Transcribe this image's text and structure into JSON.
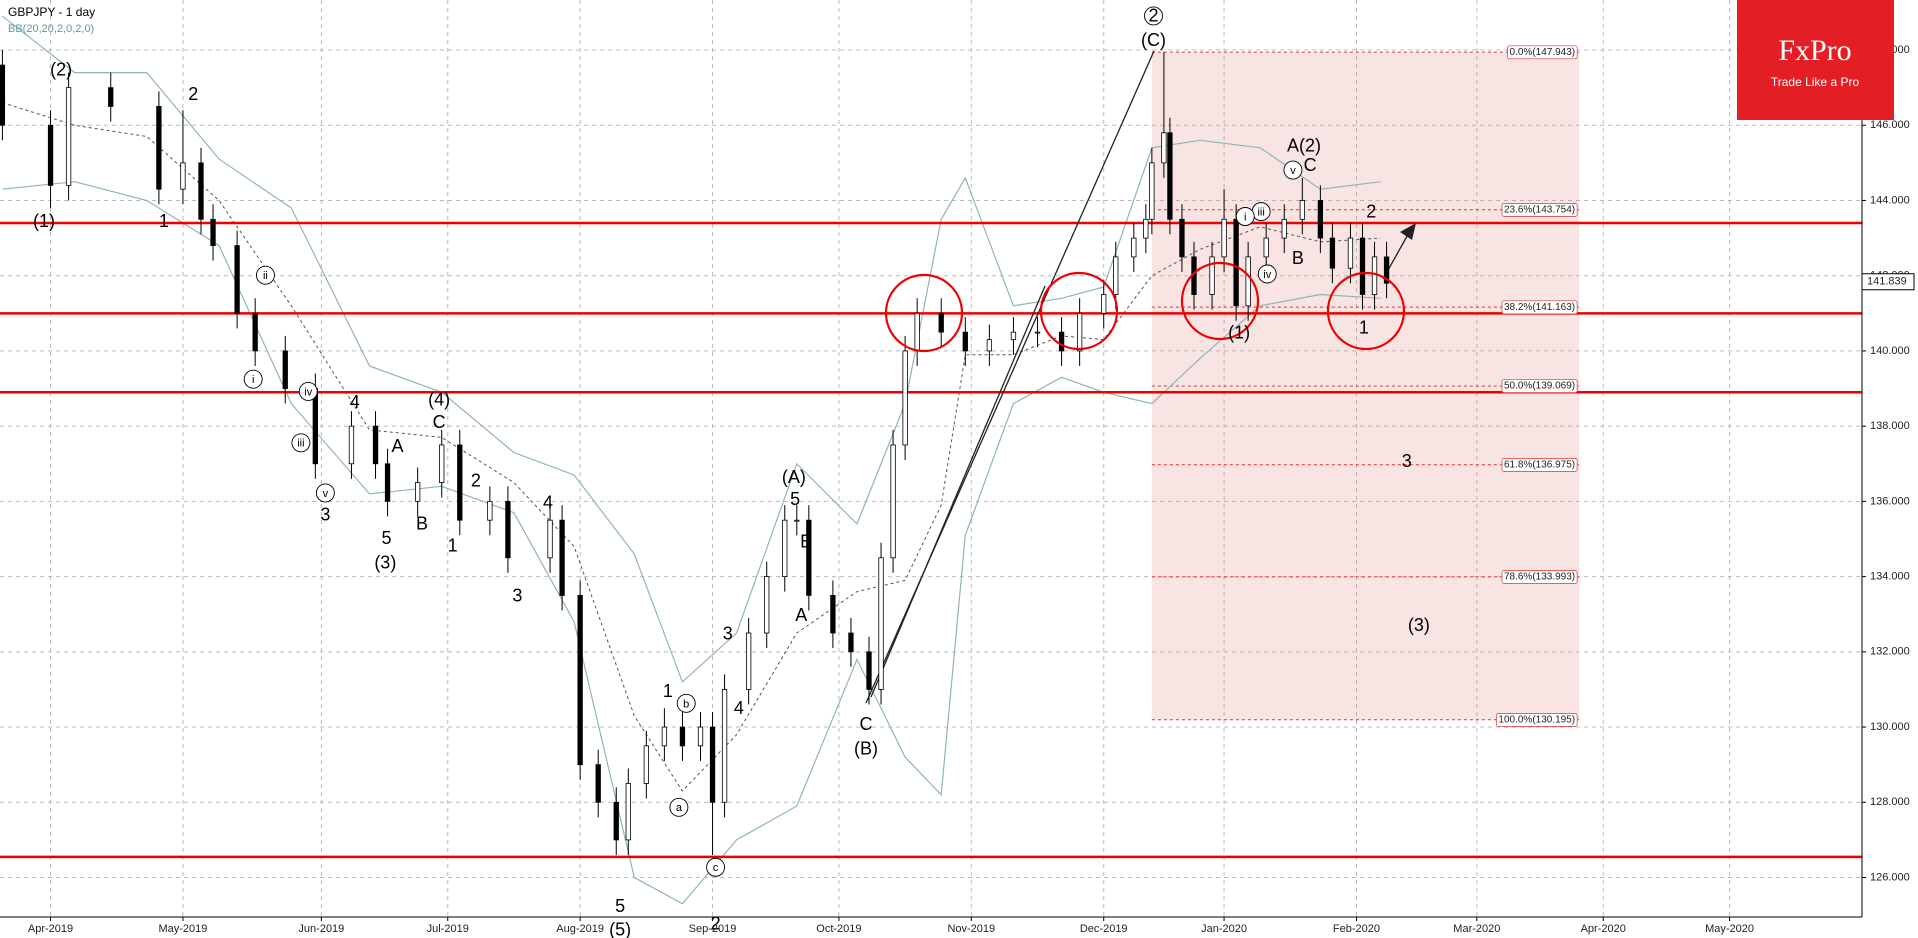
{
  "chart_data": {
    "type": "candlestick",
    "title": "GBPJPY - 1 day",
    "subtitle": "BB(20,20,2,0,2,0)",
    "logo": {
      "name": "FxPro",
      "tagline": "Trade Like a Pro"
    },
    "xlim": [
      0,
      309
    ],
    "xticks": [
      {
        "value": 8,
        "label": "Apr-2019"
      },
      {
        "value": 30,
        "label": "May-2019"
      },
      {
        "value": 53,
        "label": "Jun-2019"
      },
      {
        "value": 74,
        "label": "Jul-2019"
      },
      {
        "value": 96,
        "label": "Aug-2019"
      },
      {
        "value": 118,
        "label": "Sep-2019"
      },
      {
        "value": 139,
        "label": "Oct-2019"
      },
      {
        "value": 161,
        "label": "Nov-2019"
      },
      {
        "value": 183,
        "label": "Dec-2019"
      },
      {
        "value": 203,
        "label": "Jan-2020"
      },
      {
        "value": 225,
        "label": "Feb-2020"
      },
      {
        "value": 245,
        "label": "Mar-2020"
      },
      {
        "value": 266,
        "label": "Apr-2020"
      },
      {
        "value": 287,
        "label": "May-2020"
      }
    ],
    "ylim": [
      124.95,
      149.33
    ],
    "yticks": [
      {
        "value": 126,
        "label": "126.000"
      },
      {
        "value": 128,
        "label": "128.000"
      },
      {
        "value": 130,
        "label": "130.000"
      },
      {
        "value": 132,
        "label": "132.000"
      },
      {
        "value": 134,
        "label": "134.000"
      },
      {
        "value": 136,
        "label": "136.000"
      },
      {
        "value": 138,
        "label": "138.000"
      },
      {
        "value": 140,
        "label": "140.000"
      },
      {
        "value": 142,
        "label": "142.000"
      },
      {
        "value": 144,
        "label": "144.000"
      },
      {
        "value": 146,
        "label": "146.000"
      },
      {
        "value": 148,
        "label": "148.000"
      }
    ],
    "grid": true,
    "x": [
      0,
      8,
      11,
      18,
      26,
      30,
      33,
      35,
      39,
      42,
      47,
      52,
      58,
      62,
      64,
      69,
      73,
      76,
      81,
      84,
      91,
      93,
      96,
      99,
      102,
      104,
      107,
      110,
      113,
      116,
      118,
      120,
      124,
      127,
      130,
      132,
      134,
      138,
      141,
      144,
      146,
      148,
      150,
      152,
      156,
      160,
      164,
      168,
      172,
      176,
      179,
      183,
      185,
      188,
      190,
      191,
      193,
      194,
      196,
      198,
      201,
      203,
      205,
      207,
      210,
      213,
      216,
      219,
      221,
      224,
      226,
      228,
      230
    ],
    "open": [
      147.6,
      146.0,
      144.4,
      147.0,
      146.5,
      144.3,
      145.0,
      143.5,
      142.8,
      141.0,
      140.0,
      139.0,
      137.0,
      138.0,
      137.0,
      136.0,
      136.5,
      137.5,
      135.5,
      136.0,
      134.5,
      135.5,
      133.5,
      129.0,
      128.0,
      127.0,
      128.5,
      129.5,
      130.0,
      129.5,
      130.0,
      128.0,
      131.0,
      132.5,
      134.0,
      135.5,
      135.5,
      133.5,
      132.5,
      132.0,
      131.0,
      134.5,
      137.5,
      140.0,
      141.0,
      140.5,
      140.0,
      140.3,
      140.5,
      140.5,
      140.0,
      141.0,
      141.5,
      142.5,
      143.0,
      143.5,
      145.0,
      145.8,
      143.5,
      142.5,
      141.5,
      142.5,
      143.5,
      141.2,
      142.5,
      143.0,
      143.5,
      144.0,
      143.0,
      142.2,
      143.0,
      141.5,
      142.5
    ],
    "high": [
      148.0,
      146.4,
      147.4,
      147.4,
      146.9,
      146.4,
      145.4,
      143.9,
      143.2,
      141.4,
      140.4,
      139.4,
      138.4,
      138.4,
      137.4,
      136.9,
      137.9,
      137.9,
      136.4,
      136.4,
      135.9,
      135.9,
      133.9,
      129.4,
      128.4,
      128.9,
      129.9,
      130.5,
      130.4,
      130.4,
      130.4,
      131.4,
      132.9,
      134.4,
      135.9,
      135.9,
      135.9,
      133.9,
      132.9,
      132.4,
      134.9,
      137.9,
      140.4,
      141.4,
      141.4,
      140.9,
      140.7,
      140.9,
      140.9,
      140.9,
      141.4,
      141.9,
      142.9,
      143.4,
      143.9,
      145.4,
      147.943,
      146.2,
      143.9,
      142.9,
      142.9,
      144.3,
      143.9,
      142.9,
      143.4,
      143.9,
      144.6,
      144.4,
      143.4,
      143.4,
      143.4,
      142.9,
      142.9
    ],
    "low": [
      145.6,
      143.8,
      144.0,
      146.1,
      143.9,
      143.9,
      143.1,
      142.4,
      140.6,
      139.6,
      138.6,
      136.6,
      136.6,
      136.6,
      135.6,
      135.6,
      136.1,
      135.1,
      135.1,
      134.1,
      134.1,
      133.1,
      128.6,
      127.6,
      126.6,
      126.6,
      128.1,
      129.1,
      129.1,
      129.1,
      126.6,
      127.6,
      130.6,
      132.1,
      133.6,
      135.1,
      133.1,
      132.1,
      131.6,
      130.6,
      130.6,
      134.1,
      137.1,
      139.6,
      140.1,
      139.6,
      139.6,
      139.9,
      140.1,
      139.6,
      139.6,
      140.6,
      141.1,
      142.1,
      142.6,
      143.1,
      144.6,
      143.1,
      142.1,
      141.1,
      141.1,
      142.1,
      140.8,
      140.8,
      142.1,
      142.6,
      143.1,
      142.6,
      141.8,
      141.8,
      141.1,
      141.1,
      141.4
    ],
    "close": [
      146.0,
      144.4,
      147.0,
      146.5,
      144.3,
      145.0,
      143.5,
      142.8,
      141.0,
      140.0,
      139.0,
      137.0,
      138.0,
      137.0,
      136.0,
      136.5,
      137.5,
      135.5,
      136.0,
      134.5,
      135.5,
      133.5,
      129.0,
      128.0,
      127.0,
      128.5,
      129.5,
      130.0,
      129.5,
      130.0,
      128.0,
      131.0,
      132.5,
      134.0,
      135.5,
      135.5,
      133.5,
      132.5,
      132.0,
      131.0,
      134.5,
      137.5,
      140.0,
      141.0,
      140.5,
      140.0,
      140.3,
      140.5,
      140.5,
      140.0,
      141.0,
      141.5,
      142.5,
      143.0,
      143.5,
      145.0,
      145.8,
      143.5,
      142.5,
      141.5,
      142.5,
      143.5,
      141.2,
      142.5,
      143.0,
      143.5,
      144.0,
      143.0,
      142.2,
      143.0,
      141.5,
      142.5,
      141.8
    ],
    "bollinger": {
      "x": [
        0,
        12,
        24,
        36,
        48,
        61,
        73,
        85,
        95,
        105,
        113,
        122,
        132,
        142,
        150,
        156,
        160,
        168,
        176,
        183,
        191,
        199,
        209,
        219,
        229
      ],
      "upper": [
        148.9,
        147.4,
        147.4,
        145.1,
        143.8,
        139.6,
        138.9,
        137.3,
        136.7,
        134.6,
        131.2,
        132.5,
        137.0,
        135.4,
        138.6,
        143.5,
        144.6,
        141.2,
        141.4,
        141.7,
        145.4,
        145.6,
        145.4,
        144.3,
        144.5
      ],
      "middle": [
        146.6,
        146.0,
        145.7,
        144.0,
        141.2,
        137.9,
        137.7,
        136.5,
        134.8,
        130.3,
        128.3,
        129.8,
        132.5,
        133.6,
        133.9,
        135.9,
        139.9,
        139.9,
        140.4,
        140.3,
        142.0,
        142.7,
        143.3,
        142.9,
        143.0
      ],
      "lower": [
        144.3,
        144.5,
        144.0,
        142.8,
        138.6,
        136.2,
        136.4,
        135.7,
        132.8,
        126.0,
        125.3,
        127.0,
        127.9,
        131.8,
        129.2,
        128.2,
        135.1,
        138.6,
        139.3,
        138.9,
        138.6,
        139.8,
        141.2,
        141.5,
        141.4
      ]
    },
    "horizontal_levels": [
      143.4,
      141.0,
      138.9,
      126.55
    ],
    "fib_range": {
      "x": [
        191,
        262
      ]
    },
    "fib_levels": [
      {
        "value": 147.943,
        "label": "0.0%(147.943)"
      },
      {
        "value": 143.754,
        "label": "23.6%(143.754)"
      },
      {
        "value": 141.163,
        "label": "38.2%(141.163)"
      },
      {
        "value": 139.069,
        "label": "50.0%(139.069)"
      },
      {
        "value": 136.975,
        "label": "61.8%(136.975)"
      },
      {
        "value": 133.993,
        "label": "78.6%(133.993)"
      },
      {
        "value": 130.195,
        "label": "100.0%(130.195)"
      }
    ],
    "current_price": 141.839,
    "wave_labels": [
      "(2)",
      "(1)",
      "1",
      "2",
      "ii",
      "i",
      "iii",
      "iv",
      "v",
      "3",
      "4",
      "(4)",
      "C",
      "A",
      "2",
      "B",
      "1",
      "5",
      "(3)",
      "4",
      "3",
      "1",
      "b",
      "a",
      "3",
      "4",
      "(A)",
      "5",
      "B",
      "A",
      "C",
      "(B)",
      "5",
      "c",
      "2",
      "2",
      "(C)",
      "A(2)",
      "C",
      "v",
      "iii",
      "i",
      "B",
      "iv",
      "(1)",
      "2",
      "1",
      "3",
      "(3)",
      "(5)"
    ]
  }
}
